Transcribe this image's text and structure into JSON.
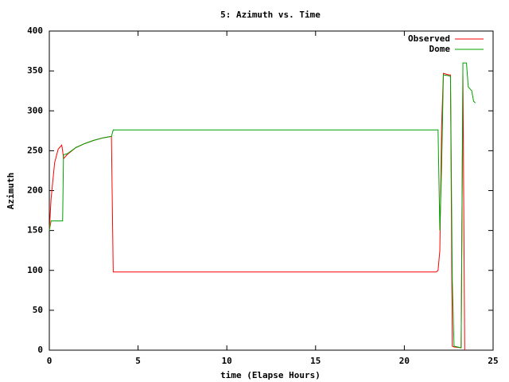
{
  "chart_data": {
    "type": "line",
    "title": "5: Azimuth vs. Time",
    "x_label": "time (Elapse Hours)",
    "y_label": "Azimuth",
    "x": [
      0,
      0.1,
      0.3,
      0.5,
      0.7,
      0.75,
      0.8,
      1.0,
      1.5,
      2.0,
      2.5,
      3.0,
      3.5,
      3.6,
      3.7,
      10,
      21.8,
      21.9,
      22.0,
      22.1,
      22.2,
      22.5,
      22.6,
      22.7,
      22.8,
      23.2,
      23.3,
      23.4,
      23.5,
      23.6,
      23.8,
      23.9,
      24.0
    ],
    "series": [
      {
        "name": "Observed",
        "color": "#ff0000",
        "values": [
          150,
          190,
          235,
          252,
          257,
          250,
          240,
          245,
          254,
          259,
          263,
          266,
          268,
          98,
          98,
          98,
          98,
          100,
          125,
          280,
          347,
          345,
          345,
          5,
          4,
          3,
          345,
          0,
          null,
          null,
          null,
          null,
          null
        ]
      },
      {
        "name": "Dome",
        "color": "#00a000",
        "values": [
          150,
          162,
          162,
          162,
          162,
          162,
          245,
          246,
          254,
          259,
          263,
          266,
          268,
          276,
          276,
          276,
          276,
          276,
          150,
          230,
          345,
          344,
          343,
          90,
          5,
          3,
          360,
          360,
          360,
          330,
          325,
          312,
          310
        ]
      }
    ],
    "xlim": [
      0,
      25
    ],
    "xticks": [
      0,
      5,
      10,
      15,
      20,
      25
    ],
    "ylim": [
      0,
      400
    ],
    "yticks": [
      0,
      50,
      100,
      150,
      200,
      250,
      300,
      350,
      400
    ],
    "legend": "top-right"
  }
}
